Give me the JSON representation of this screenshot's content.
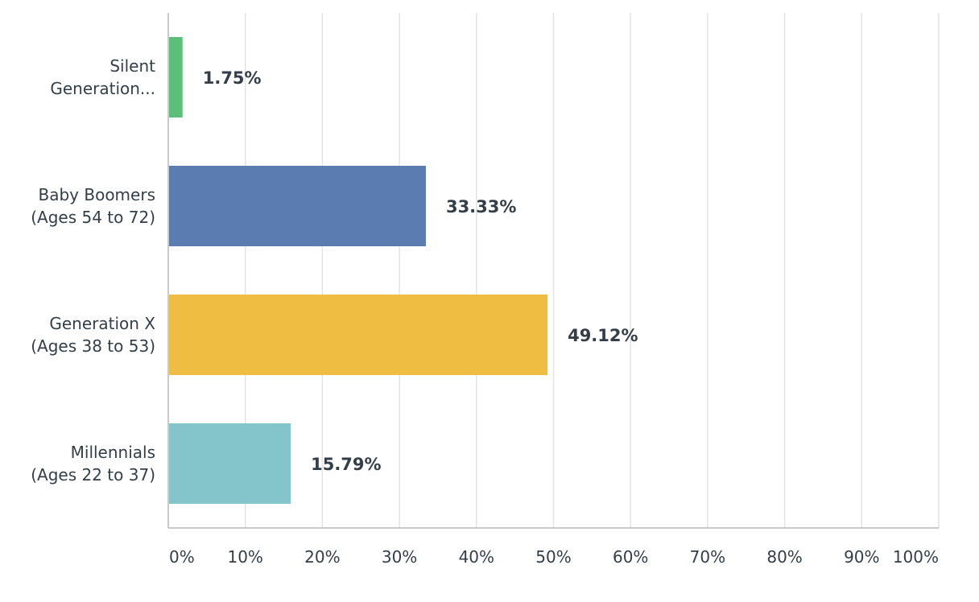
{
  "chart_data": {
    "type": "bar",
    "orientation": "horizontal",
    "categories": [
      [
        "Silent",
        "Generation..."
      ],
      [
        "Baby Boomers",
        "(Ages 54 to 72)"
      ],
      [
        "Generation X",
        "(Ages 38 to 53)"
      ],
      [
        "Millennials",
        "(Ages 22 to 37)"
      ]
    ],
    "values": [
      1.75,
      33.33,
      49.12,
      15.79
    ],
    "value_labels": [
      "1.75%",
      "33.33%",
      "49.12%",
      "15.79%"
    ],
    "colors": [
      "#5cbf79",
      "#5a7cb1",
      "#efbd42",
      "#83c5ca"
    ],
    "xlim": [
      0,
      100
    ],
    "xticks": [
      0,
      10,
      20,
      30,
      40,
      50,
      60,
      70,
      80,
      90,
      100
    ],
    "xtick_labels": [
      "0%",
      "10%",
      "20%",
      "30%",
      "40%",
      "50%",
      "60%",
      "70%",
      "80%",
      "90%",
      "100%"
    ],
    "grid": true,
    "title": "",
    "xlabel": "",
    "ylabel": ""
  }
}
